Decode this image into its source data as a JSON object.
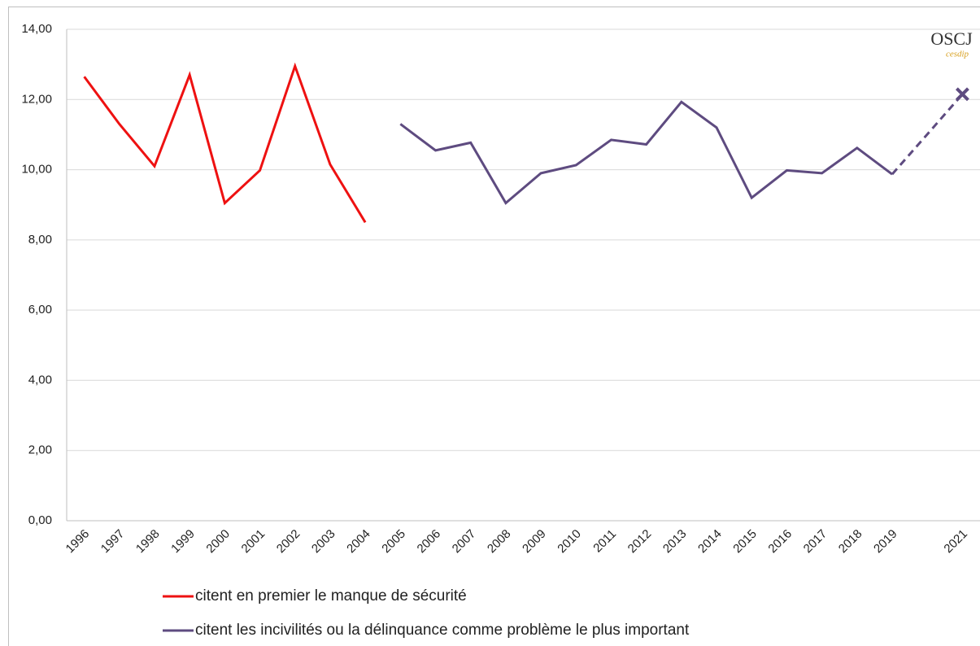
{
  "chart_data": {
    "type": "line",
    "categories": [
      "1996",
      "1997",
      "1998",
      "1999",
      "2000",
      "2001",
      "2002",
      "2003",
      "2004",
      "2005",
      "2006",
      "2007",
      "2008",
      "2009",
      "2010",
      "2011",
      "2012",
      "2013",
      "2014",
      "2015",
      "2016",
      "2017",
      "2018",
      "2019",
      null,
      "2021"
    ],
    "series": [
      {
        "name": "citent en premier le manque de sécurité",
        "color": "#ee1111",
        "values": [
          12.65,
          11.3,
          10.1,
          12.7,
          9.05,
          9.98,
          12.95,
          10.15,
          8.5,
          null,
          null,
          null,
          null,
          null,
          null,
          null,
          null,
          null,
          null,
          null,
          null,
          null,
          null,
          null,
          null,
          null
        ]
      },
      {
        "name": "citent les incivilités ou la délinquance comme problème le plus important",
        "color": "#5e4b80",
        "values": [
          null,
          null,
          null,
          null,
          null,
          null,
          null,
          null,
          null,
          11.3,
          10.55,
          10.77,
          9.05,
          9.9,
          10.13,
          10.85,
          10.72,
          11.93,
          11.2,
          9.2,
          9.98,
          9.9,
          10.62,
          9.87,
          null,
          12.15
        ],
        "gap_style": "dashed",
        "isolated_marker": "x"
      }
    ],
    "ylim": [
      0,
      14
    ],
    "yticks": [
      {
        "value": 0,
        "label": "0,00"
      },
      {
        "value": 2,
        "label": "2,00"
      },
      {
        "value": 4,
        "label": "4,00"
      },
      {
        "value": 6,
        "label": "6,00"
      },
      {
        "value": 8,
        "label": "8,00"
      },
      {
        "value": 10,
        "label": "10,00"
      },
      {
        "value": 12,
        "label": "12,00"
      },
      {
        "value": 14,
        "label": "14,00"
      }
    ],
    "grid": true,
    "legend": "bottom",
    "logo": {
      "title": "OSCJ",
      "subtitle": "cesdip"
    }
  }
}
